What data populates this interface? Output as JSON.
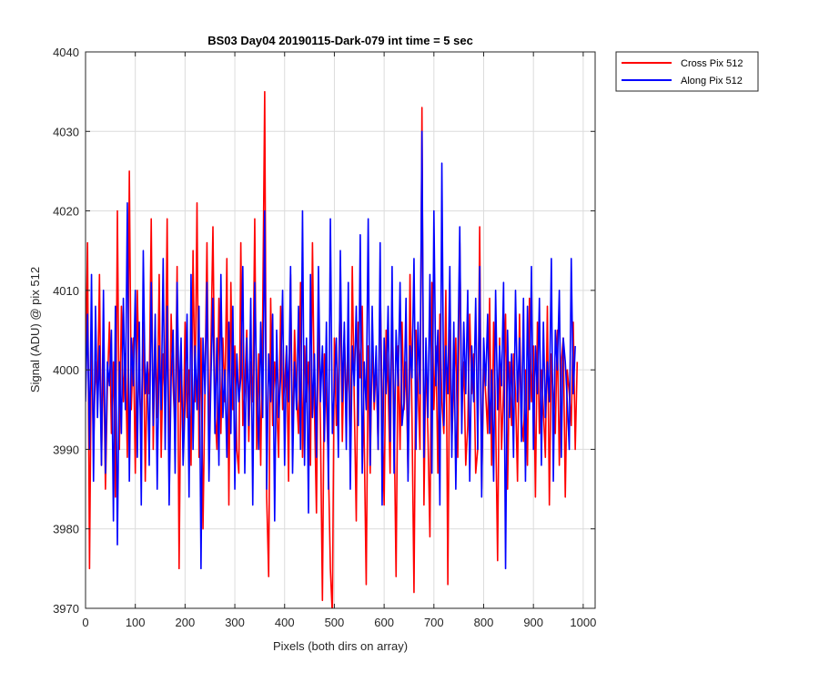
{
  "chart_data": {
    "type": "line",
    "title": "BS03 Day04 20190115-Dark-079 int time = 5 sec",
    "xlabel": "Pixels (both dirs on array)",
    "ylabel": "Signal (ADU) @ pix 512",
    "xlim": [
      0,
      1024
    ],
    "ylim": [
      3970,
      4040
    ],
    "xticks": [
      0,
      100,
      200,
      300,
      400,
      500,
      600,
      700,
      800,
      900,
      1000
    ],
    "yticks": [
      3970,
      3980,
      3990,
      4000,
      4010,
      4020,
      4030,
      4040
    ],
    "grid": true,
    "legend_position": "outside-top-right",
    "noise_note_points": "values are sampled every 4 pixels (estimated from the plot)",
    "series": [
      {
        "name": "Cross Pix 512",
        "color": "#ff0000",
        "x_start": 0,
        "x_step": 4,
        "values": [
          3999,
          4016,
          3975,
          4005,
          3990,
          4001,
          3996,
          4012,
          3988,
          4003,
          3985,
          3998,
          4006,
          3992,
          4001,
          3984,
          4020,
          3990,
          4008,
          3996,
          4002,
          3989,
          4025,
          3995,
          4004,
          3987,
          4010,
          3998,
          3993,
          4006,
          3986,
          4001,
          3997,
          4019,
          3990,
          4005,
          3994,
          4012,
          3989,
          4002,
          3996,
          4019,
          3985,
          4007,
          3998,
          3992,
          4013,
          3975,
          4002,
          3990,
          4006,
          3994,
          4000,
          3988,
          4015,
          3996,
          4021,
          3989,
          4004,
          3980,
          3998,
          4016,
          3991,
          4003,
          4018,
          3995,
          3990,
          4009,
          3992,
          4004,
          3996,
          4014,
          3983,
          4011,
          3995,
          4003,
          3990,
          3987,
          4016,
          3993,
          3998,
          4005,
          3991,
          4001,
          3996,
          4019,
          3990,
          4002,
          3988,
          4007,
          4035,
          3984,
          3974,
          4009,
          3993,
          4001,
          3996,
          3989,
          4008,
          3995,
          3998,
          4003,
          3986,
          4012,
          3990,
          4005,
          3997,
          3992,
          4011,
          3989,
          4003,
          3996,
          4001,
          3988,
          4016,
          3995,
          3982,
          4007,
          3993,
          3971,
          4002,
          3996,
          3988,
          3975,
          3969,
          4004,
          3993,
          3998,
          4010,
          3991,
          4005,
          3995,
          4002,
          3989,
          4013,
          3996,
          3981,
          4006,
          3999,
          4008,
          3991,
          3973,
          4003,
          3987,
          4004,
          3995,
          4001,
          3990,
          4011,
          3996,
          3983,
          4005,
          3998,
          3987,
          4009,
          3994,
          3974,
          4003,
          3990,
          4006,
          3995,
          4001,
          3987,
          4012,
          3994,
          3972,
          4005,
          3998,
          3990,
          4033,
          3983,
          4002,
          3992,
          3979,
          4011,
          3995,
          4003,
          3987,
          4007,
          3996,
          3992,
          4010,
          3973,
          4005,
          3991,
          3998,
          4004,
          3989,
          4016,
          3995,
          4001,
          3988,
          3993,
          4007,
          3997,
          4002,
          3987,
          3990,
          4018,
          3985,
          4001,
          3997,
          3992,
          4009,
          3988,
          4006,
          3994,
          3976,
          4004,
          3990,
          3998,
          4007,
          3985,
          4001,
          3993,
          4002,
          3997,
          3986,
          4007,
          3994,
          3991,
          4000,
          3988,
          4009,
          3996,
          4003,
          3984,
          4006,
          3992,
          4000,
          3995,
          3989,
          4008,
          3983,
          4002,
          3996,
          3992,
          4005,
          3988,
          4001,
          4004,
          3984,
          4000,
          3997,
          3993,
          4006,
          3990,
          4001
        ]
      },
      {
        "name": "Along Pix 512",
        "color": "#0000ff",
        "x_start": 0,
        "x_step": 4,
        "values": [
          3996,
          4007,
          3990,
          4012,
          3986,
          4008,
          3994,
          4003,
          3988,
          4010,
          3987,
          4001,
          3998,
          4005,
          3981,
          4008,
          3978,
          4001,
          3992,
          4009,
          3995,
          4021,
          3986,
          4004,
          3998,
          4010,
          3989,
          4006,
          3983,
          4015,
          3997,
          4001,
          3988,
          4011,
          3993,
          4007,
          3985,
          4003,
          3995,
          4014,
          3990,
          4008,
          3983,
          3999,
          4005,
          3987,
          4011,
          3996,
          4004,
          3988,
          3996,
          4007,
          3984,
          4012,
          3990,
          4003,
          3995,
          4008,
          3975,
          4004,
          3997,
          4011,
          3986,
          3999,
          4009,
          3992,
          4004,
          3988,
          4012,
          3994,
          4000,
          3989,
          4006,
          3992,
          4008,
          3985,
          4002,
          3996,
          3999,
          4013,
          3987,
          4004,
          3993,
          4009,
          3983,
          4011,
          3998,
          3990,
          4006,
          3994,
          4020,
          3985,
          4002,
          3996,
          4007,
          3981,
          4005,
          3994,
          3999,
          4010,
          3988,
          4003,
          3996,
          4013,
          3987,
          4001,
          3995,
          4008,
          3990,
          4020,
          3988,
          4004,
          3982,
          4012,
          3994,
          4002,
          3989,
          4013,
          3996,
          4003,
          3991,
          4006,
          3985,
          4019,
          3992,
          3998,
          4004,
          3989,
          4015,
          3996,
          4006,
          3990,
          4011,
          3985,
          4003,
          3998,
          4008,
          3993,
          4017,
          3987,
          4001,
          3995,
          4019,
          3988,
          4008,
          3996,
          4003,
          3990,
          4016,
          3983,
          4004,
          3997,
          4008,
          3991,
          4013,
          3987,
          4005,
          3998,
          4011,
          3993,
          3996,
          4009,
          3986,
          4003,
          3999,
          4014,
          3990,
          4006,
          3997,
          4030,
          3989,
          4004,
          3994,
          4012,
          3987,
          4020,
          3998,
          4005,
          3983,
          4026,
          3993,
          4003,
          3997,
          4013,
          3989,
          4006,
          3985,
          4001,
          4018,
          3992,
          4006,
          3997,
          4010,
          3986,
          4003,
          3996,
          4009,
          3990,
          4013,
          3984,
          4004,
          3998,
          4007,
          3992,
          4000,
          3986,
          4010,
          3995,
          4003,
          3998,
          4011,
          3975,
          4005,
          3994,
          4002,
          3989,
          4010,
          3996,
          4004,
          3991,
          4009,
          3986,
          4008,
          3995,
          4013,
          3990,
          4003,
          3997,
          4009,
          3988,
          4006,
          3994,
          4001,
          3996,
          4014,
          3986,
          4005,
          4000,
          4010,
          3989,
          4004,
          4001,
          3996,
          3990,
          4014,
          3997,
          4003
        ]
      }
    ]
  }
}
